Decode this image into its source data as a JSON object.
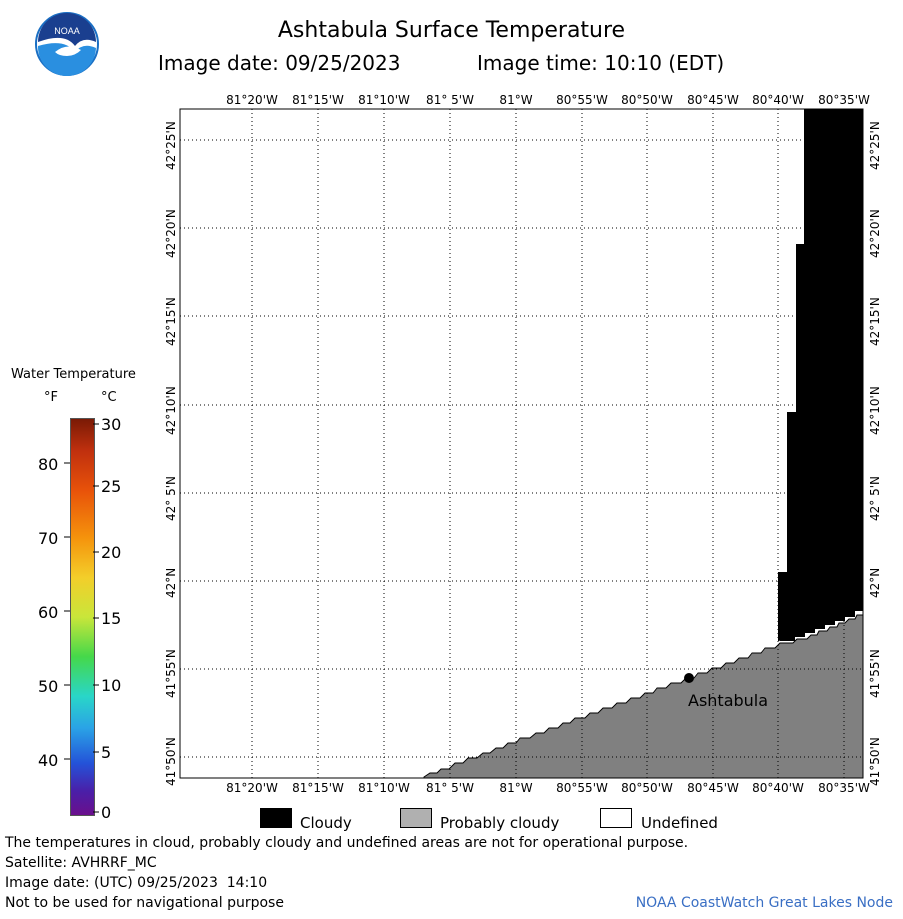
{
  "header": {
    "title": "Ashtabula Surface Temperature",
    "image_date": "Image date: 09/25/2023",
    "image_time": "Image time: 10:10 (EDT)"
  },
  "logo": {
    "text": "NOAA"
  },
  "map": {
    "lon_labels": [
      "81°20'W",
      "81°15'W",
      "81°10'W",
      "81° 5'W",
      "81°W",
      "80°55'W",
      "80°50'W",
      "80°45'W",
      "80°40'W",
      "80°35'W"
    ],
    "lat_labels": [
      "42°25'N",
      "42°20'N",
      "42°15'N",
      "42°10'N",
      "42° 5'N",
      "42°N",
      "41°55'N",
      "41°50'N"
    ],
    "place_label": "Ashtabula",
    "colors": {
      "cloudy": "#000000",
      "probably_cloudy": "#808080",
      "undefined": "#ffffff"
    }
  },
  "colorbar": {
    "title": "Water Temperature",
    "unit_f": "°F",
    "unit_c": "°C",
    "f_ticks": [
      "80",
      "70",
      "60",
      "50",
      "40"
    ],
    "c_ticks": [
      "30",
      "25",
      "20",
      "15",
      "10",
      "5",
      "0"
    ]
  },
  "legend": {
    "cloudy": "Cloudy",
    "probably_cloudy": "Probably cloudy",
    "undefined": "Undefined"
  },
  "footer": {
    "disclaimer": "The temperatures in cloud, probably cloudy and undefined areas are not for operational purpose.",
    "satellite": "Satellite: AVHRRF_MC",
    "utc_date": "Image date: (UTC) 09/25/2023  14:10",
    "nav_warning": "Not to be used for navigational purpose",
    "credit": "NOAA CoastWatch Great Lakes Node"
  }
}
